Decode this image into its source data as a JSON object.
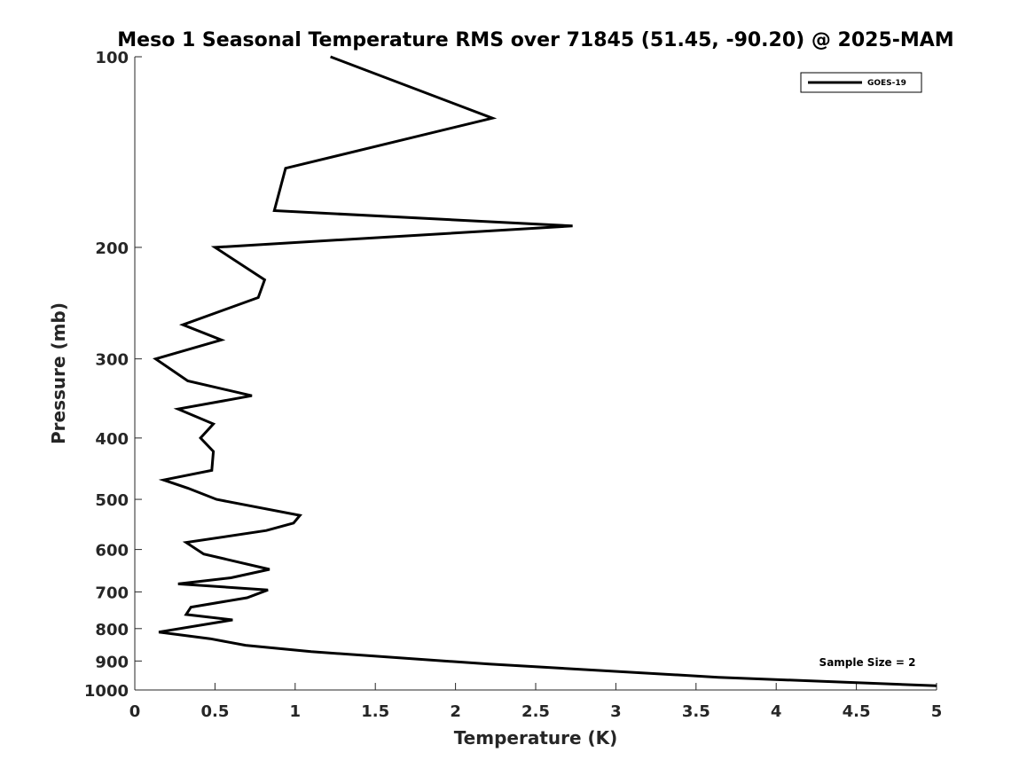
{
  "chart_data": {
    "type": "line",
    "title": "Meso 1 Seasonal Temperature RMS over 71845 (51.45, -90.20) @ 2025-MAM",
    "xlabel": "Temperature (K)",
    "ylabel": "Pressure (mb)",
    "xlim": [
      0,
      5
    ],
    "ylim": [
      100,
      1000
    ],
    "y_scale": "log",
    "y_reversed": true,
    "x_ticks": [
      "0",
      "0.5",
      "1",
      "1.5",
      "2",
      "2.5",
      "3",
      "3.5",
      "4",
      "4.5",
      "5"
    ],
    "y_ticks": [
      "100",
      "200",
      "300",
      "400",
      "500",
      "600",
      "700",
      "800",
      "900",
      "1000"
    ],
    "grid": false,
    "legend": {
      "placement": "top-right",
      "entries": [
        "GOES-19"
      ]
    },
    "annotation": "Sample Size = 2",
    "series": [
      {
        "name": "GOES-19",
        "color": "#000000",
        "points": [
          [
            1.22,
            100
          ],
          [
            2.23,
            125
          ],
          [
            0.94,
            150
          ],
          [
            0.87,
            175
          ],
          [
            2.73,
            185
          ],
          [
            0.5,
            200
          ],
          [
            0.81,
            225
          ],
          [
            0.77,
            240
          ],
          [
            0.3,
            265
          ],
          [
            0.54,
            280
          ],
          [
            0.13,
            300
          ],
          [
            0.33,
            325
          ],
          [
            0.73,
            343
          ],
          [
            0.27,
            360
          ],
          [
            0.49,
            380
          ],
          [
            0.41,
            400
          ],
          [
            0.49,
            420
          ],
          [
            0.48,
            450
          ],
          [
            0.18,
            466
          ],
          [
            0.33,
            480
          ],
          [
            0.51,
            500
          ],
          [
            1.03,
            530
          ],
          [
            0.99,
            545
          ],
          [
            0.82,
            560
          ],
          [
            0.32,
            585
          ],
          [
            0.43,
            610
          ],
          [
            0.84,
            645
          ],
          [
            0.6,
            665
          ],
          [
            0.27,
            680
          ],
          [
            0.83,
            695
          ],
          [
            0.7,
            715
          ],
          [
            0.35,
            740
          ],
          [
            0.32,
            760
          ],
          [
            0.61,
            775
          ],
          [
            0.15,
            810
          ],
          [
            0.47,
            830
          ],
          [
            0.69,
            850
          ],
          [
            1.1,
            870
          ],
          [
            2.21,
            910
          ],
          [
            3.64,
            955
          ],
          [
            5.0,
            985
          ]
        ]
      }
    ]
  }
}
